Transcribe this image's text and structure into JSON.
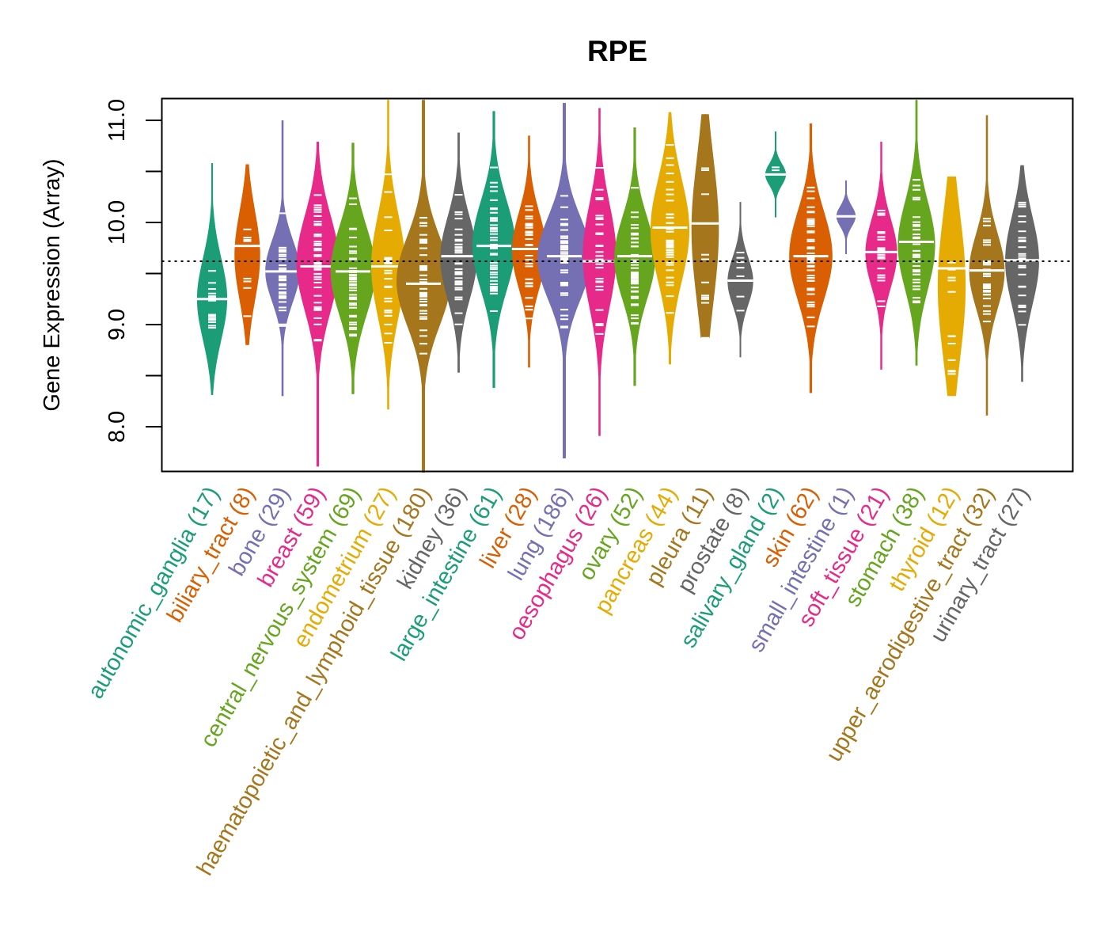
{
  "chart_data": {
    "type": "beanplot",
    "title": "RPE",
    "xlabel": "",
    "ylabel": "Gene Expression (Array)",
    "ylim": [
      7.55,
      11.22
    ],
    "yticks": [
      8.0,
      8.5,
      9.0,
      9.5,
      10.0,
      10.5,
      11.0
    ],
    "ytick_labels": [
      "8.0",
      "",
      "9.0",
      "",
      "10.0",
      "",
      "11.0"
    ],
    "overall_reference_line": 9.62,
    "grid": false,
    "legend": "none",
    "palette": [
      "#1B9E77",
      "#D95F02",
      "#7570B3",
      "#E7298A",
      "#66A61E",
      "#E6AB02",
      "#A6761D",
      "#666666"
    ],
    "categories": [
      {
        "name": "autonomic_ganglia",
        "n": 17,
        "label": "autonomic_ganglia (17)",
        "color": "#1B9E77",
        "min": 8.31,
        "max": 10.58,
        "median": 9.25,
        "q1": 8.95,
        "q3": 9.55
      },
      {
        "name": "biliary_tract",
        "n": 8,
        "label": "biliary_tract (8)",
        "color": "#D95F02",
        "min": 8.8,
        "max": 10.57,
        "median": 9.77,
        "q1": 9.35,
        "q3": 10.0
      },
      {
        "name": "bone",
        "n": 29,
        "label": "bone (29)",
        "color": "#7570B3",
        "min": 8.3,
        "max": 11.0,
        "median": 9.52,
        "q1": 9.3,
        "q3": 9.75
      },
      {
        "name": "breast",
        "n": 59,
        "label": "breast (59)",
        "color": "#E7298A",
        "min": 7.61,
        "max": 10.79,
        "median": 9.57,
        "q1": 9.25,
        "q3": 9.95
      },
      {
        "name": "central_nervous_system",
        "n": 69,
        "label": "central_nervous_system (69)",
        "color": "#66A61E",
        "min": 8.32,
        "max": 10.78,
        "median": 9.52,
        "q1": 9.2,
        "q3": 9.85
      },
      {
        "name": "endometrium",
        "n": 27,
        "label": "endometrium (27)",
        "color": "#E6AB02",
        "min": 8.17,
        "max": 11.2,
        "median": 9.57,
        "q1": 9.2,
        "q3": 9.95
      },
      {
        "name": "haematopoietic_and_lymphoid_tissue",
        "n": 180,
        "label": "haematopoietic_and_lymphoid_tissue (180)",
        "color": "#A6761D",
        "min": 7.55,
        "max": 11.2,
        "median": 9.4,
        "q1": 9.1,
        "q3": 9.75
      },
      {
        "name": "kidney",
        "n": 36,
        "label": "kidney (36)",
        "color": "#666666",
        "min": 8.53,
        "max": 10.88,
        "median": 9.67,
        "q1": 9.35,
        "q3": 9.95
      },
      {
        "name": "large_intestine",
        "n": 61,
        "label": "large_intestine (61)",
        "color": "#1B9E77",
        "min": 8.38,
        "max": 11.09,
        "median": 9.77,
        "q1": 9.45,
        "q3": 10.1
      },
      {
        "name": "liver",
        "n": 28,
        "label": "liver (28)",
        "color": "#D95F02",
        "min": 8.58,
        "max": 10.85,
        "median": 9.74,
        "q1": 9.45,
        "q3": 10.0
      },
      {
        "name": "lung",
        "n": 186,
        "label": "lung (186)",
        "color": "#7570B3",
        "min": 7.69,
        "max": 11.17,
        "median": 9.67,
        "q1": 9.35,
        "q3": 9.95
      },
      {
        "name": "oesophagus",
        "n": 26,
        "label": "oesophagus (26)",
        "color": "#E7298A",
        "min": 7.91,
        "max": 11.12,
        "median": 9.62,
        "q1": 9.3,
        "q3": 10.05
      },
      {
        "name": "ovary",
        "n": 52,
        "label": "ovary (52)",
        "color": "#66A61E",
        "min": 8.4,
        "max": 10.93,
        "median": 9.67,
        "q1": 9.35,
        "q3": 9.95
      },
      {
        "name": "pancreas",
        "n": 44,
        "label": "pancreas (44)",
        "color": "#E6AB02",
        "min": 8.61,
        "max": 11.08,
        "median": 9.95,
        "q1": 9.55,
        "q3": 10.3
      },
      {
        "name": "pleura",
        "n": 11,
        "label": "pleura (11)",
        "color": "#A6761D",
        "min": 8.87,
        "max": 11.06,
        "median": 9.99,
        "q1": 9.4,
        "q3": 10.45
      },
      {
        "name": "prostate",
        "n": 8,
        "label": "prostate (8)",
        "color": "#666666",
        "min": 8.68,
        "max": 10.2,
        "median": 9.43,
        "q1": 9.25,
        "q3": 9.6
      },
      {
        "name": "salivary_gland",
        "n": 2,
        "label": "salivary_gland (2)",
        "color": "#1B9E77",
        "min": 10.05,
        "max": 10.89,
        "median": 10.47,
        "q1": 10.39,
        "q3": 10.55
      },
      {
        "name": "skin",
        "n": 62,
        "label": "skin (62)",
        "color": "#D95F02",
        "min": 8.33,
        "max": 10.97,
        "median": 9.67,
        "q1": 9.35,
        "q3": 10.0
      },
      {
        "name": "small_intestine",
        "n": 1,
        "label": "small_intestine (1)",
        "color": "#7570B3",
        "min": 9.69,
        "max": 10.41,
        "median": 10.06,
        "q1": 10.06,
        "q3": 10.06
      },
      {
        "name": "soft_tissue",
        "n": 21,
        "label": "soft_tissue (21)",
        "color": "#E7298A",
        "min": 8.56,
        "max": 10.79,
        "median": 9.71,
        "q1": 9.45,
        "q3": 9.95
      },
      {
        "name": "stomach",
        "n": 38,
        "label": "stomach (38)",
        "color": "#66A61E",
        "min": 8.6,
        "max": 11.2,
        "median": 9.81,
        "q1": 9.45,
        "q3": 10.1
      },
      {
        "name": "thyroid",
        "n": 12,
        "label": "thyroid (12)",
        "color": "#E6AB02",
        "min": 8.3,
        "max": 10.45,
        "median": 9.55,
        "q1": 8.85,
        "q3": 9.9
      },
      {
        "name": "upper_aerodigestive_tract",
        "n": 32,
        "label": "upper_aerodigestive_tract (32)",
        "color": "#A6761D",
        "min": 8.11,
        "max": 11.05,
        "median": 9.53,
        "q1": 9.25,
        "q3": 9.8
      },
      {
        "name": "urinary_tract",
        "n": 27,
        "label": "urinary_tract (27)",
        "color": "#666666",
        "min": 8.44,
        "max": 10.56,
        "median": 9.63,
        "q1": 9.3,
        "q3": 9.95
      }
    ]
  }
}
